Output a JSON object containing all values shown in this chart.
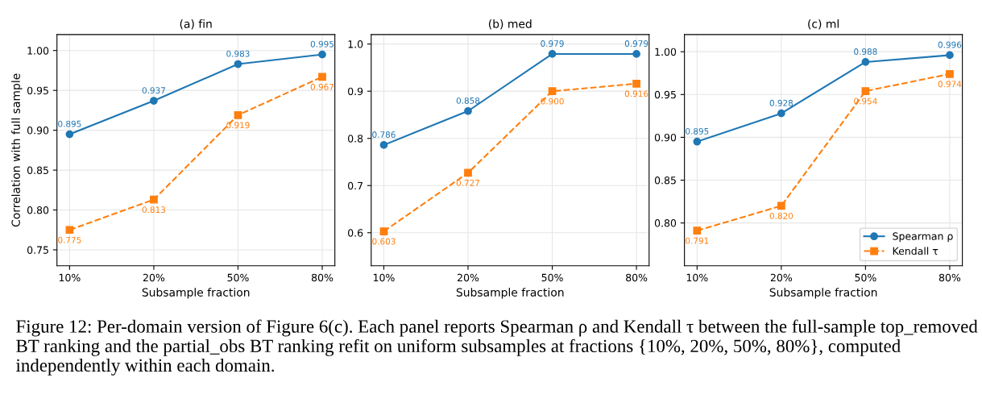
{
  "chart_data": [
    {
      "type": "line",
      "title": "(a) fin",
      "xlabel": "Subsample fraction",
      "ylabel": "Correlation with full sample",
      "categories": [
        "10%",
        "20%",
        "50%",
        "80%"
      ],
      "ylim": [
        0.73,
        1.02
      ],
      "yticks": [
        {
          "value": 0.75,
          "label": "0.75"
        },
        {
          "value": 0.8,
          "label": "0.80"
        },
        {
          "value": 0.85,
          "label": "0.85"
        },
        {
          "value": 0.9,
          "label": "0.90"
        },
        {
          "value": 0.95,
          "label": "0.95"
        },
        {
          "value": 1.0,
          "label": "1.00"
        }
      ],
      "grid": true,
      "legend": false,
      "series": [
        {
          "color": "#1f77b4",
          "marker": "circle",
          "line_style": "solid",
          "values": [
            0.895,
            0.937,
            0.983,
            0.995
          ],
          "value_labels": [
            "0.895",
            "0.937",
            "0.983",
            "0.995"
          ]
        },
        {
          "color": "#ff7f0e",
          "marker": "square",
          "line_style": "dashed",
          "values": [
            0.775,
            0.813,
            0.919,
            0.967
          ],
          "value_labels": [
            "0.775",
            "0.813",
            "0.919",
            "0.967"
          ]
        }
      ],
      "annotations": [
        "Figure 12: Per-domain version of Figure 6(c). Each panel reports Spearman ρ and Kendall τ between the full-sample top_removed BT ranking and the partial_obs BT ranking refit on uniform subsamples at fractions {10%, 20%, 50%, 80%}, computed independently within each domain."
      ]
    },
    {
      "type": "line",
      "title": "(b) med",
      "xlabel": "Subsample fraction",
      "categories": [
        "10%",
        "20%",
        "50%",
        "80%"
      ],
      "ylim": [
        0.53,
        1.02
      ],
      "yticks": [
        0.6,
        0.7,
        0.8,
        0.9,
        {
          "value": 1.0,
          "label": "1.0"
        }
      ],
      "grid": true,
      "legend": false,
      "series": [
        {
          "color": "#1f77b4",
          "marker": "circle",
          "line_style": "solid",
          "values": [
            0.786,
            0.858,
            0.979,
            0.979
          ],
          "value_labels": [
            "0.786",
            "0.858",
            "0.979",
            "0.979"
          ]
        },
        {
          "color": "#ff7f0e",
          "marker": "square",
          "line_style": "dashed",
          "values": [
            0.603,
            0.727,
            0.9,
            0.916
          ],
          "value_labels": [
            "0.603",
            "0.727",
            "0.900",
            "0.916"
          ]
        }
      ]
    },
    {
      "type": "line",
      "title": "(c) ml",
      "xlabel": "Subsample fraction",
      "categories": [
        "10%",
        "20%",
        "50%",
        "80%"
      ],
      "ylim": [
        0.75,
        1.02
      ],
      "yticks": [
        {
          "value": 0.8,
          "label": "0.80"
        },
        {
          "value": 0.85,
          "label": "0.85"
        },
        {
          "value": 0.9,
          "label": "0.90"
        },
        {
          "value": 0.95,
          "label": "0.95"
        },
        {
          "value": 1.0,
          "label": "1.00"
        }
      ],
      "grid": true,
      "legend": "bottom right",
      "series": [
        {
          "name": "Spearman ρ",
          "color": "#1f77b4",
          "marker": "circle",
          "line_style": "solid",
          "values": [
            0.895,
            0.928,
            0.988,
            0.996
          ],
          "value_labels": [
            "0.895",
            "0.928",
            "0.988",
            "0.996"
          ]
        },
        {
          "name": "Kendall τ",
          "color": "#ff7f0e",
          "marker": "square",
          "line_style": "dashed",
          "values": [
            0.791,
            0.82,
            0.954,
            0.974
          ],
          "value_labels": [
            "0.791",
            "0.820",
            "0.954",
            "0.974"
          ]
        }
      ]
    }
  ]
}
